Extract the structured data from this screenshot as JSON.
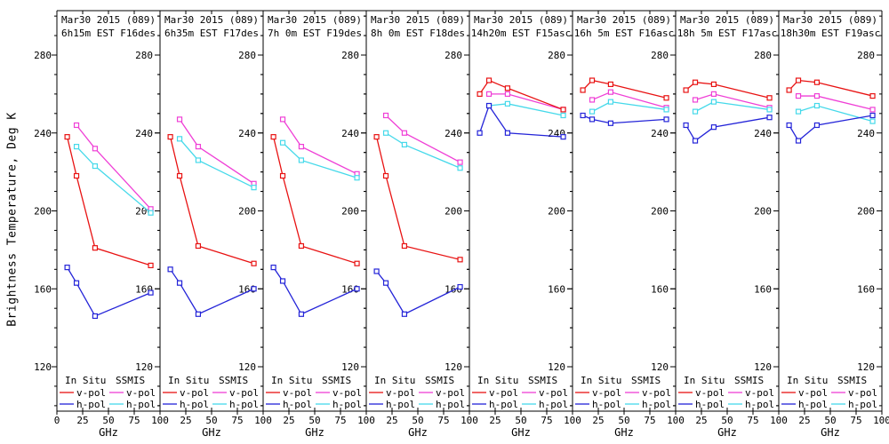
{
  "ylabel": "Brightness Temperature, Deg K",
  "xlabel": "GHz",
  "legend": {
    "group1": "In Situ",
    "group2": "SSMIS",
    "vpol": "v-pol",
    "hpol": "h-pol"
  },
  "colors": {
    "insitu_vpol": "#e81212",
    "insitu_hpol": "#2424d8",
    "ssmis_vpol": "#ef3fd6",
    "ssmis_hpol": "#45d9ea",
    "frame": "#000000",
    "background": "#ffffff"
  },
  "axes": {
    "xlim": [
      0,
      100
    ],
    "xticks": [
      0,
      25,
      50,
      75,
      100
    ],
    "ylim": [
      97,
      303
    ],
    "yticks": [
      120,
      160,
      200,
      240,
      280
    ],
    "y_minor_step": 10
  },
  "chart_data": {
    "type": "line",
    "title_note": "8 panels of brightness temperature vs frequency, In Situ vs SSMIS, v-pol and h-pol",
    "x_in_situ": [
      10,
      19,
      37,
      91
    ],
    "x_ssmis": [
      19,
      37,
      91
    ],
    "panels": [
      {
        "title_line1": "Mar30 2015 (089)",
        "title_line2": "6h15m EST F16des",
        "series": [
          {
            "name": "SSMIS v-pol",
            "color_key": "ssmis_vpol",
            "x_key": "x_ssmis",
            "y": [
              244,
              232,
              201
            ]
          },
          {
            "name": "SSMIS h-pol",
            "color_key": "ssmis_hpol",
            "x_key": "x_ssmis",
            "y": [
              233,
              223,
              199
            ]
          },
          {
            "name": "In Situ v-pol",
            "color_key": "insitu_vpol",
            "x_key": "x_in_situ",
            "y": [
              238,
              218,
              181,
              172
            ]
          },
          {
            "name": "In Situ h-pol",
            "color_key": "insitu_hpol",
            "x_key": "x_in_situ",
            "y": [
              171,
              163,
              146,
              158
            ]
          }
        ]
      },
      {
        "title_line1": "Mar30 2015 (089)",
        "title_line2": "6h35m EST F17des",
        "series": [
          {
            "name": "SSMIS v-pol",
            "color_key": "ssmis_vpol",
            "x_key": "x_ssmis",
            "y": [
              247,
              233,
              214
            ]
          },
          {
            "name": "SSMIS h-pol",
            "color_key": "ssmis_hpol",
            "x_key": "x_ssmis",
            "y": [
              237,
              226,
              212
            ]
          },
          {
            "name": "In Situ v-pol",
            "color_key": "insitu_vpol",
            "x_key": "x_in_situ",
            "y": [
              238,
              218,
              182,
              173
            ]
          },
          {
            "name": "In Situ h-pol",
            "color_key": "insitu_hpol",
            "x_key": "x_in_situ",
            "y": [
              170,
              163,
              147,
              160
            ]
          }
        ]
      },
      {
        "title_line1": "Mar30 2015 (089)",
        "title_line2": "7h 0m EST F19des",
        "series": [
          {
            "name": "SSMIS v-pol",
            "color_key": "ssmis_vpol",
            "x_key": "x_ssmis",
            "y": [
              247,
              233,
              219
            ]
          },
          {
            "name": "SSMIS h-pol",
            "color_key": "ssmis_hpol",
            "x_key": "x_ssmis",
            "y": [
              235,
              226,
              217
            ]
          },
          {
            "name": "In Situ v-pol",
            "color_key": "insitu_vpol",
            "x_key": "x_in_situ",
            "y": [
              238,
              218,
              182,
              173
            ]
          },
          {
            "name": "In Situ h-pol",
            "color_key": "insitu_hpol",
            "x_key": "x_in_situ",
            "y": [
              171,
              164,
              147,
              160
            ]
          }
        ]
      },
      {
        "title_line1": "Mar30 2015 (089)",
        "title_line2": "8h 0m EST F18des",
        "series": [
          {
            "name": "SSMIS v-pol",
            "color_key": "ssmis_vpol",
            "x_key": "x_ssmis",
            "y": [
              249,
              240,
              225
            ]
          },
          {
            "name": "SSMIS h-pol",
            "color_key": "ssmis_hpol",
            "x_key": "x_ssmis",
            "y": [
              240,
              234,
              222
            ]
          },
          {
            "name": "In Situ v-pol",
            "color_key": "insitu_vpol",
            "x_key": "x_in_situ",
            "y": [
              238,
              218,
              182,
              175
            ]
          },
          {
            "name": "In Situ h-pol",
            "color_key": "insitu_hpol",
            "x_key": "x_in_situ",
            "y": [
              169,
              163,
              147,
              161
            ]
          }
        ]
      },
      {
        "title_line1": "Mar30 2015 (089)",
        "title_line2": "14h20m EST F15asc",
        "series": [
          {
            "name": "SSMIS v-pol",
            "color_key": "ssmis_vpol",
            "x_key": "x_ssmis",
            "y": [
              260,
              260,
              252
            ]
          },
          {
            "name": "SSMIS h-pol",
            "color_key": "ssmis_hpol",
            "x_key": "x_ssmis",
            "y": [
              254,
              255,
              249
            ]
          },
          {
            "name": "In Situ v-pol",
            "color_key": "insitu_vpol",
            "x_key": "x_in_situ",
            "y": [
              260,
              267,
              263,
              252
            ]
          },
          {
            "name": "In Situ h-pol",
            "color_key": "insitu_hpol",
            "x_key": "x_in_situ",
            "y": [
              240,
              254,
              240,
              238
            ]
          }
        ]
      },
      {
        "title_line1": "Mar30 2015 (089)",
        "title_line2": "16h 5m EST F16asc",
        "series": [
          {
            "name": "SSMIS v-pol",
            "color_key": "ssmis_vpol",
            "x_key": "x_ssmis",
            "y": [
              257,
              261,
              253
            ]
          },
          {
            "name": "SSMIS h-pol",
            "color_key": "ssmis_hpol",
            "x_key": "x_ssmis",
            "y": [
              251,
              256,
              252
            ]
          },
          {
            "name": "In Situ v-pol",
            "color_key": "insitu_vpol",
            "x_key": "x_in_situ",
            "y": [
              262,
              267,
              265,
              258
            ]
          },
          {
            "name": "In Situ h-pol",
            "color_key": "insitu_hpol",
            "x_key": "x_in_situ",
            "y": [
              249,
              247,
              245,
              247
            ]
          }
        ]
      },
      {
        "title_line1": "Mar30 2015 (089)",
        "title_line2": "18h 5m EST F17asc",
        "series": [
          {
            "name": "SSMIS v-pol",
            "color_key": "ssmis_vpol",
            "x_key": "x_ssmis",
            "y": [
              257,
              260,
              253
            ]
          },
          {
            "name": "SSMIS h-pol",
            "color_key": "ssmis_hpol",
            "x_key": "x_ssmis",
            "y": [
              251,
              256,
              252
            ]
          },
          {
            "name": "In Situ v-pol",
            "color_key": "insitu_vpol",
            "x_key": "x_in_situ",
            "y": [
              262,
              266,
              265,
              258
            ]
          },
          {
            "name": "In Situ h-pol",
            "color_key": "insitu_hpol",
            "x_key": "x_in_situ",
            "y": [
              244,
              236,
              243,
              248
            ]
          }
        ]
      },
      {
        "title_line1": "Mar30 2015 (089)",
        "title_line2": "18h30m EST F19asc",
        "series": [
          {
            "name": "SSMIS v-pol",
            "color_key": "ssmis_vpol",
            "x_key": "x_ssmis",
            "y": [
              259,
              259,
              252
            ]
          },
          {
            "name": "SSMIS h-pol",
            "color_key": "ssmis_hpol",
            "x_key": "x_ssmis",
            "y": [
              251,
              254,
              246
            ]
          },
          {
            "name": "In Situ v-pol",
            "color_key": "insitu_vpol",
            "x_key": "x_in_situ",
            "y": [
              262,
              267,
              266,
              259
            ]
          },
          {
            "name": "In Situ h-pol",
            "color_key": "insitu_hpol",
            "x_key": "x_in_situ",
            "y": [
              244,
              236,
              244,
              249
            ]
          }
        ]
      }
    ]
  }
}
